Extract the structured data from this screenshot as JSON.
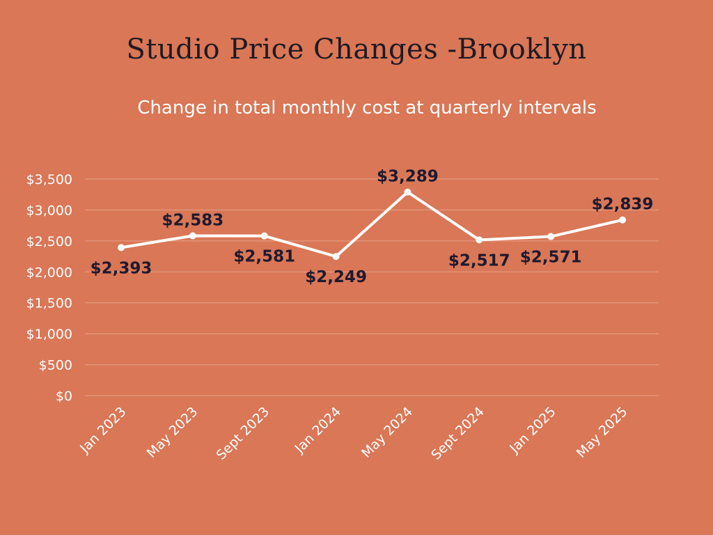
{
  "chart_data": {
    "type": "line",
    "title": "Studio Price Changes -Brooklyn",
    "subtitle": "Change in total monthly cost at quarterly intervals",
    "categories": [
      "Jan 2023",
      "May 2023",
      "Sept 2023",
      "Jan 2024",
      "May 2024",
      "Sept 2024",
      "Jan 2025",
      "May 2025"
    ],
    "values": [
      2393,
      2583,
      2581,
      2249,
      3289,
      2517,
      2571,
      2839
    ],
    "data_labels": [
      "$2,393",
      "$2,583",
      "$2,581",
      "$2,249",
      "$3,289",
      "$2,517",
      "$2,571",
      "$2,839"
    ],
    "label_positions": [
      "below",
      "above",
      "below",
      "below",
      "above",
      "below",
      "below",
      "above"
    ],
    "y_ticks": [
      0,
      500,
      1000,
      1500,
      2000,
      2500,
      3000,
      3500
    ],
    "y_tick_labels": [
      "$0",
      "$500",
      "$1,000",
      "$1,500",
      "$2,000",
      "$2,500",
      "$3,000",
      "$3,500"
    ],
    "ylim": [
      0,
      3500
    ],
    "grid": true,
    "colors": {
      "background": "#D97757",
      "line": "#FFFFFF",
      "title": "#1F1A22",
      "data_label": "#1F1A2E",
      "grid": "#E8A489"
    }
  }
}
